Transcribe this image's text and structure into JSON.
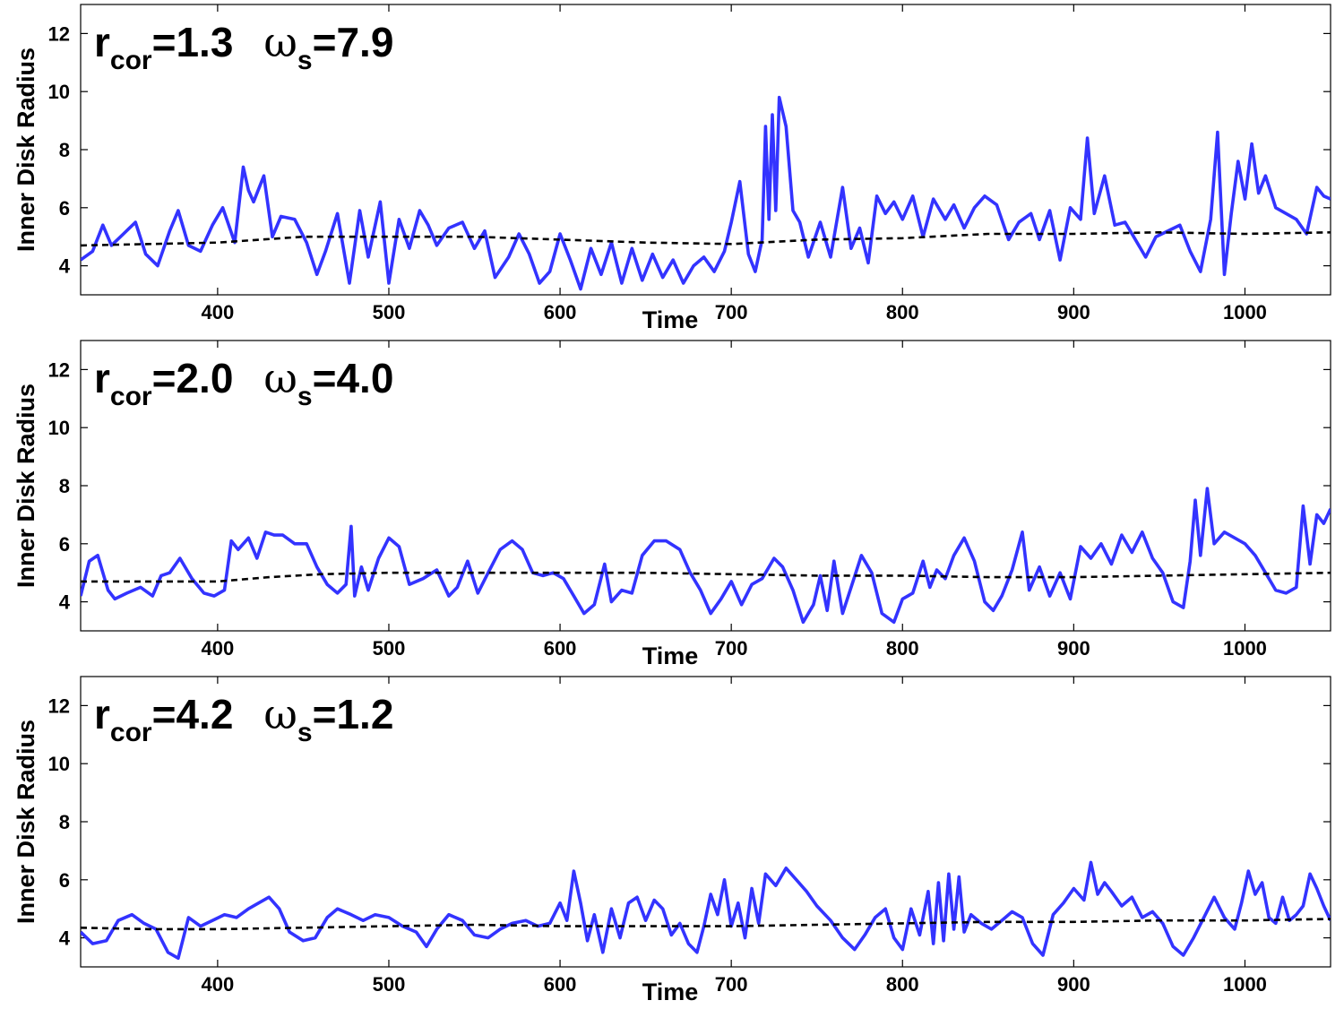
{
  "chart_data": [
    {
      "type": "line",
      "annotation": {
        "r_sub": "cor",
        "r_value": "=1.3",
        "w_sub": "s",
        "w_value": "=7.9"
      },
      "xlabel": "Time",
      "ylabel": "Inner Disk Radius",
      "xlim": [
        320,
        1050
      ],
      "ylim": [
        3,
        13
      ],
      "xticks": [
        400,
        500,
        600,
        700,
        800,
        900,
        1000
      ],
      "yticks": [
        4,
        6,
        8,
        10,
        12
      ],
      "grid": false,
      "series": [
        {
          "style": "solid",
          "color": "#3333ff",
          "x": [
            320,
            327,
            333,
            338,
            345,
            352,
            358,
            365,
            372,
            377,
            383,
            390,
            397,
            403,
            410,
            415,
            418,
            421,
            427,
            432,
            437,
            445,
            452,
            458,
            463,
            470,
            477,
            483,
            488,
            495,
            500,
            506,
            512,
            518,
            523,
            528,
            535,
            543,
            550,
            556,
            562,
            570,
            576,
            582,
            588,
            594,
            600,
            606,
            612,
            618,
            624,
            630,
            636,
            642,
            648,
            654,
            660,
            666,
            672,
            678,
            684,
            690,
            696,
            700,
            705,
            710,
            714,
            718,
            720,
            722,
            724,
            726,
            728,
            732,
            736,
            740,
            745,
            752,
            758,
            765,
            770,
            775,
            780,
            785,
            790,
            795,
            800,
            806,
            812,
            818,
            825,
            830,
            836,
            842,
            848,
            855,
            862,
            868,
            875,
            880,
            886,
            892,
            898,
            904,
            908,
            912,
            918,
            924,
            930,
            936,
            942,
            948,
            955,
            962,
            968,
            974,
            980,
            984,
            988,
            992,
            996,
            1000,
            1004,
            1008,
            1012,
            1018,
            1024,
            1030,
            1036,
            1042,
            1046,
            1050
          ],
          "y": [
            4.2,
            4.5,
            5.4,
            4.7,
            5.1,
            5.5,
            4.4,
            4.0,
            5.2,
            5.9,
            4.7,
            4.5,
            5.4,
            6.0,
            4.8,
            7.4,
            6.6,
            6.2,
            7.1,
            5.0,
            5.7,
            5.6,
            4.8,
            3.7,
            4.5,
            5.8,
            3.4,
            5.9,
            4.3,
            6.2,
            3.4,
            5.6,
            4.6,
            5.9,
            5.4,
            4.7,
            5.3,
            5.5,
            4.6,
            5.2,
            3.6,
            4.3,
            5.1,
            4.4,
            3.4,
            3.8,
            5.1,
            4.2,
            3.2,
            4.6,
            3.7,
            4.8,
            3.4,
            4.6,
            3.5,
            4.4,
            3.6,
            4.2,
            3.4,
            4.0,
            4.3,
            3.8,
            4.5,
            5.5,
            6.9,
            4.4,
            3.8,
            4.9,
            8.8,
            5.6,
            9.2,
            5.9,
            9.8,
            8.8,
            5.9,
            5.5,
            4.3,
            5.5,
            4.3,
            6.7,
            4.6,
            5.3,
            4.1,
            6.4,
            5.8,
            6.2,
            5.6,
            6.4,
            5.0,
            6.3,
            5.6,
            6.1,
            5.3,
            6.0,
            6.4,
            6.1,
            4.9,
            5.5,
            5.8,
            4.9,
            5.9,
            4.2,
            6.0,
            5.6,
            8.4,
            5.8,
            7.1,
            5.4,
            5.5,
            4.9,
            4.3,
            5.0,
            5.2,
            5.4,
            4.5,
            3.8,
            5.6,
            8.6,
            3.7,
            5.8,
            7.6,
            6.3,
            8.2,
            6.5,
            7.1,
            6.0,
            5.8,
            5.6,
            5.1,
            6.7,
            6.4,
            6.3
          ]
        },
        {
          "style": "dashed",
          "color": "#000000",
          "x": [
            320,
            360,
            400,
            450,
            500,
            550,
            600,
            650,
            700,
            750,
            800,
            850,
            900,
            950,
            1000,
            1050
          ],
          "y": [
            4.7,
            4.75,
            4.8,
            5.0,
            5.0,
            5.0,
            4.9,
            4.8,
            4.75,
            4.9,
            4.95,
            5.1,
            5.1,
            5.15,
            5.1,
            5.15
          ]
        }
      ]
    },
    {
      "type": "line",
      "annotation": {
        "r_sub": "cor",
        "r_value": "=2.0",
        "w_sub": "s",
        "w_value": "=4.0"
      },
      "xlabel": "Time",
      "ylabel": "Inner Disk Radius",
      "xlim": [
        320,
        1050
      ],
      "ylim": [
        3,
        13
      ],
      "xticks": [
        400,
        500,
        600,
        700,
        800,
        900,
        1000
      ],
      "yticks": [
        4,
        6,
        8,
        10,
        12
      ],
      "grid": false,
      "series": [
        {
          "style": "solid",
          "color": "#3333ff",
          "x": [
            320,
            325,
            330,
            336,
            340,
            347,
            355,
            362,
            367,
            372,
            378,
            385,
            392,
            398,
            404,
            408,
            412,
            418,
            423,
            428,
            433,
            438,
            445,
            452,
            458,
            464,
            470,
            475,
            478,
            480,
            484,
            488,
            494,
            500,
            506,
            512,
            520,
            528,
            535,
            540,
            546,
            552,
            558,
            565,
            572,
            578,
            584,
            590,
            596,
            602,
            608,
            614,
            620,
            626,
            630,
            636,
            642,
            648,
            655,
            662,
            670,
            676,
            682,
            688,
            694,
            700,
            706,
            712,
            718,
            725,
            730,
            736,
            742,
            748,
            752,
            756,
            760,
            765,
            770,
            776,
            782,
            788,
            795,
            800,
            806,
            812,
            816,
            820,
            825,
            830,
            836,
            842,
            848,
            853,
            858,
            864,
            870,
            874,
            880,
            886,
            892,
            898,
            904,
            910,
            916,
            922,
            928,
            934,
            940,
            946,
            952,
            958,
            964,
            968,
            971,
            974,
            978,
            982,
            988,
            994,
            1000,
            1006,
            1012,
            1018,
            1024,
            1030,
            1034,
            1038,
            1042,
            1046,
            1050
          ],
          "y": [
            4.2,
            5.4,
            5.6,
            4.4,
            4.1,
            4.3,
            4.5,
            4.2,
            4.9,
            5.0,
            5.5,
            4.8,
            4.3,
            4.2,
            4.4,
            6.1,
            5.8,
            6.2,
            5.5,
            6.4,
            6.3,
            6.3,
            6.0,
            6.0,
            5.2,
            4.6,
            4.3,
            4.6,
            6.6,
            4.2,
            5.2,
            4.4,
            5.5,
            6.2,
            5.9,
            4.6,
            4.8,
            5.1,
            4.2,
            4.5,
            5.4,
            4.3,
            5.0,
            5.8,
            6.1,
            5.8,
            5.0,
            4.9,
            5.0,
            4.8,
            4.2,
            3.6,
            3.9,
            5.3,
            4.0,
            4.4,
            4.3,
            5.6,
            6.1,
            6.1,
            5.8,
            5.0,
            4.4,
            3.6,
            4.1,
            4.7,
            3.9,
            4.6,
            4.8,
            5.5,
            5.2,
            4.4,
            3.3,
            3.9,
            4.9,
            3.7,
            5.4,
            3.6,
            4.5,
            5.6,
            5.0,
            3.6,
            3.3,
            4.1,
            4.3,
            5.4,
            4.5,
            5.1,
            4.8,
            5.6,
            6.2,
            5.4,
            4.0,
            3.7,
            4.2,
            5.1,
            6.4,
            4.4,
            5.2,
            4.2,
            5.0,
            4.1,
            5.9,
            5.5,
            6.0,
            5.3,
            6.3,
            5.7,
            6.4,
            5.5,
            5.0,
            4.0,
            3.8,
            5.4,
            7.5,
            5.6,
            7.9,
            6.0,
            6.4,
            6.2,
            6.0,
            5.6,
            5.0,
            4.4,
            4.3,
            4.5,
            7.3,
            5.3,
            7.0,
            6.7,
            7.2
          ]
        },
        {
          "style": "dashed",
          "color": "#000000",
          "x": [
            320,
            360,
            400,
            430,
            460,
            500,
            550,
            600,
            650,
            700,
            750,
            800,
            850,
            900,
            950,
            1000,
            1050
          ],
          "y": [
            4.7,
            4.7,
            4.7,
            4.85,
            4.95,
            5.0,
            5.0,
            5.0,
            5.0,
            4.95,
            4.9,
            4.9,
            4.85,
            4.85,
            4.9,
            4.95,
            5.0
          ]
        }
      ]
    },
    {
      "type": "line",
      "annotation": {
        "r_sub": "cor",
        "r_value": "=4.2",
        "w_sub": "s",
        "w_value": "=1.2"
      },
      "xlabel": "Time",
      "ylabel": "Inner Disk Radius",
      "xlim": [
        320,
        1050
      ],
      "ylim": [
        3,
        13
      ],
      "xticks": [
        400,
        500,
        600,
        700,
        800,
        900,
        1000
      ],
      "yticks": [
        4,
        6,
        8,
        10,
        12
      ],
      "grid": false,
      "series": [
        {
          "style": "solid",
          "color": "#3333ff",
          "x": [
            320,
            327,
            335,
            342,
            350,
            357,
            364,
            371,
            377,
            383,
            390,
            397,
            404,
            411,
            418,
            424,
            430,
            436,
            442,
            450,
            457,
            464,
            470,
            478,
            485,
            492,
            500,
            508,
            516,
            522,
            528,
            535,
            543,
            550,
            558,
            565,
            572,
            580,
            587,
            594,
            600,
            604,
            608,
            612,
            616,
            620,
            625,
            630,
            635,
            640,
            645,
            650,
            655,
            660,
            665,
            670,
            675,
            680,
            684,
            688,
            692,
            696,
            700,
            704,
            708,
            712,
            716,
            720,
            726,
            732,
            738,
            744,
            750,
            758,
            765,
            772,
            778,
            784,
            790,
            795,
            800,
            805,
            810,
            815,
            818,
            821,
            824,
            827,
            830,
            833,
            836,
            840,
            846,
            852,
            858,
            864,
            870,
            876,
            882,
            888,
            894,
            900,
            906,
            910,
            914,
            918,
            922,
            928,
            934,
            940,
            946,
            952,
            958,
            964,
            970,
            976,
            982,
            988,
            994,
            998,
            1002,
            1006,
            1010,
            1014,
            1018,
            1022,
            1026,
            1030,
            1034,
            1038,
            1042,
            1046,
            1050
          ],
          "y": [
            4.2,
            3.8,
            3.9,
            4.6,
            4.8,
            4.5,
            4.3,
            3.5,
            3.3,
            4.7,
            4.4,
            4.6,
            4.8,
            4.7,
            5.0,
            5.2,
            5.4,
            5.0,
            4.2,
            3.9,
            4.0,
            4.7,
            5.0,
            4.8,
            4.6,
            4.8,
            4.7,
            4.4,
            4.2,
            3.7,
            4.3,
            4.8,
            4.6,
            4.1,
            4.0,
            4.3,
            4.5,
            4.6,
            4.4,
            4.5,
            5.2,
            4.6,
            6.3,
            5.2,
            3.9,
            4.8,
            3.5,
            5.0,
            4.0,
            5.2,
            5.4,
            4.6,
            5.3,
            5.0,
            4.1,
            4.5,
            3.8,
            3.5,
            4.4,
            5.5,
            4.8,
            6.0,
            4.4,
            5.2,
            4.0,
            5.7,
            4.5,
            6.2,
            5.8,
            6.4,
            6.0,
            5.6,
            5.1,
            4.6,
            4.0,
            3.6,
            4.1,
            4.7,
            5.0,
            4.0,
            3.6,
            5.0,
            4.1,
            5.6,
            3.8,
            5.9,
            3.9,
            6.2,
            4.3,
            6.1,
            4.2,
            4.8,
            4.5,
            4.3,
            4.6,
            4.9,
            4.7,
            3.8,
            3.4,
            4.8,
            5.2,
            5.7,
            5.3,
            6.6,
            5.5,
            5.9,
            5.6,
            5.1,
            5.4,
            4.7,
            4.9,
            4.5,
            3.7,
            3.4,
            4.0,
            4.7,
            5.4,
            4.7,
            4.3,
            5.2,
            6.3,
            5.5,
            5.9,
            4.7,
            4.5,
            5.4,
            4.6,
            4.8,
            5.1,
            6.2,
            5.7,
            5.1,
            4.6
          ]
        },
        {
          "style": "dashed",
          "color": "#000000",
          "x": [
            320,
            360,
            400,
            450,
            500,
            550,
            600,
            650,
            700,
            750,
            800,
            850,
            900,
            950,
            1000,
            1050
          ],
          "y": [
            4.35,
            4.3,
            4.3,
            4.35,
            4.4,
            4.45,
            4.4,
            4.4,
            4.4,
            4.45,
            4.5,
            4.55,
            4.55,
            4.6,
            4.6,
            4.65
          ]
        }
      ]
    }
  ]
}
